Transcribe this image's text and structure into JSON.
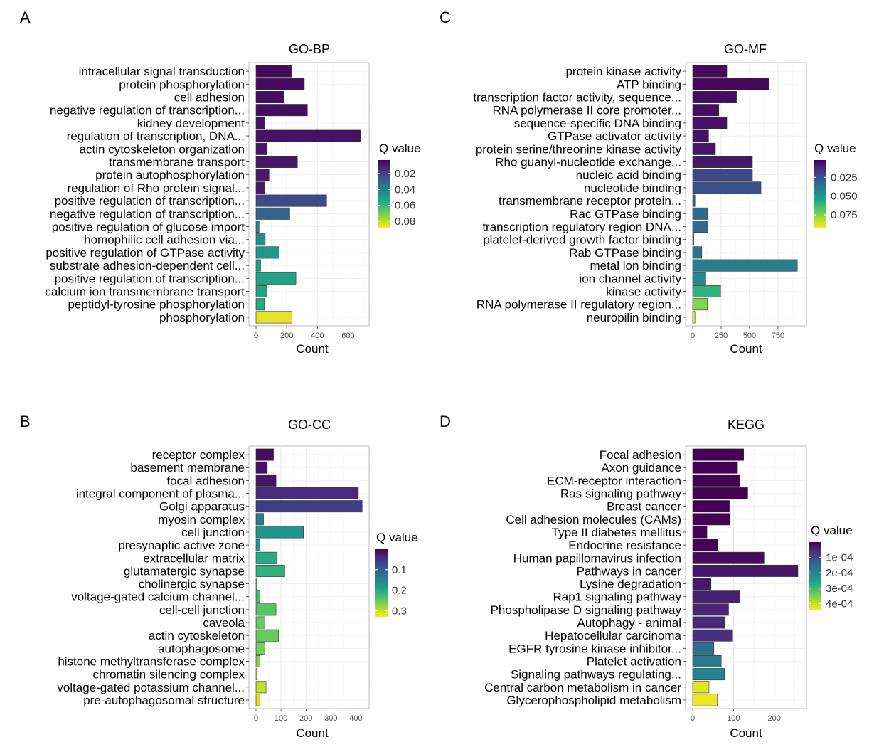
{
  "colorbar_colors": [
    "#440154",
    "#482878",
    "#3e4989",
    "#31688e",
    "#26828e",
    "#1f9e89",
    "#35b779",
    "#6ece58",
    "#b5de2b",
    "#fde725"
  ],
  "chart_data": [
    {
      "type": "bar",
      "panel_label": "A",
      "title": "GO-BP",
      "xlabel": "Count",
      "legend_title": "Q value",
      "legend_placement": "right",
      "xlim": [
        0,
        700
      ],
      "xticks": [
        0,
        200,
        400,
        600
      ],
      "qlim": [
        0.003,
        0.088
      ],
      "legend_ticks": [
        0.02,
        0.04,
        0.06,
        0.08
      ],
      "legend_tick_labels": [
        "0.02",
        "0.04",
        "0.06",
        "0.08"
      ],
      "categories": [
        "intracellular signal transduction",
        "protein phosphorylation",
        "cell adhesion",
        "negative regulation of transcription...",
        "kidney development",
        "regulation of transcription, DNA...",
        "actin cytoskeleton organization",
        "transmembrane transport",
        "protein autophosphorylation",
        "regulation of Rho protein signal...",
        "positive regulation of transcription...",
        "negative regulation of transcription...",
        "positive regulation of glucose import",
        "homophilic cell adhesion via...",
        "positive regulation of GTPase activity",
        "substrate adhesion-dependent cell...",
        "positive regulation of transcription...",
        "calcium ion transmembrane transport",
        "peptidyl-tyrosine phosphorylation",
        "phosphorylation"
      ],
      "values": [
        230,
        315,
        180,
        335,
        55,
        680,
        70,
        270,
        85,
        55,
        460,
        220,
        20,
        60,
        150,
        30,
        260,
        70,
        55,
        235
      ],
      "qvalues": [
        0.005,
        0.006,
        0.006,
        0.006,
        0.007,
        0.007,
        0.008,
        0.008,
        0.009,
        0.009,
        0.022,
        0.03,
        0.042,
        0.045,
        0.048,
        0.05,
        0.052,
        0.053,
        0.054,
        0.085
      ]
    },
    {
      "type": "bar",
      "panel_label": "B",
      "title": "GO-CC",
      "xlabel": "Count",
      "legend_title": "Q value",
      "legend_placement": "right",
      "xlim": [
        0,
        430
      ],
      "xticks": [
        0,
        100,
        200,
        300,
        400
      ],
      "qlim": [
        0.0,
        0.33
      ],
      "legend_ticks": [
        0.1,
        0.2,
        0.3
      ],
      "legend_tick_labels": [
        "0.1",
        "0.2",
        "0.3"
      ],
      "categories": [
        "receptor complex",
        "basement membrane",
        "focal adhesion",
        "integral component of plasma...",
        "Golgi apparatus",
        "myosin complex",
        "cell junction",
        "presynaptic active zone",
        "extracellular matrix",
        "glutamatergic synapse",
        "cholinergic synapse",
        "voltage-gated calcium channel...",
        "cell-cell junction",
        "caveola",
        "actin cytoskeleton",
        "autophagosome",
        "histone methyltransferase complex",
        "chromatin silencing complex",
        "voltage-gated potassium channel...",
        "pre-autophagosomal structure"
      ],
      "values": [
        70,
        45,
        80,
        410,
        425,
        30,
        190,
        15,
        85,
        115,
        5,
        15,
        80,
        35,
        90,
        35,
        15,
        5,
        40,
        15
      ],
      "qvalues": [
        0.01,
        0.015,
        0.02,
        0.04,
        0.06,
        0.14,
        0.17,
        0.18,
        0.2,
        0.21,
        0.22,
        0.23,
        0.24,
        0.25,
        0.25,
        0.26,
        0.27,
        0.28,
        0.3,
        0.31
      ]
    },
    {
      "type": "bar",
      "panel_label": "C",
      "title": "GO-MF",
      "xlabel": "Count",
      "legend_title": "Q value",
      "legend_placement": "right",
      "xlim": [
        0,
        950
      ],
      "xticks": [
        0,
        250,
        500,
        750
      ],
      "qlim": [
        0.002,
        0.092
      ],
      "legend_ticks": [
        0.025,
        0.05,
        0.075
      ],
      "legend_tick_labels": [
        "0.025",
        "0.050",
        "0.075"
      ],
      "categories": [
        "protein kinase activity",
        "ATP binding",
        "transcription factor activity, sequence...",
        "RNA polymerase II core promoter...",
        "sequence-specific DNA binding",
        "GTPase activator activity",
        "protein serine/threonine kinase activity",
        "Rho guanyl-nucleotide exchange...",
        "nucleic acid binding",
        "nucleotide binding",
        "transmembrane receptor protein...",
        "Rac GTPase binding",
        "transcription regulatory region DNA...",
        "platelet-derived growth factor binding",
        "Rab GTPase binding",
        "metal ion binding",
        "ion channel activity",
        "kinase activity",
        "RNA polymerase II regulatory region...",
        "neuropilin binding"
      ],
      "values": [
        300,
        670,
        385,
        230,
        300,
        140,
        200,
        525,
        525,
        600,
        20,
        130,
        135,
        10,
        80,
        920,
        115,
        245,
        130,
        20
      ],
      "qvalues": [
        0.004,
        0.004,
        0.005,
        0.005,
        0.006,
        0.006,
        0.007,
        0.008,
        0.022,
        0.024,
        0.03,
        0.032,
        0.033,
        0.034,
        0.036,
        0.04,
        0.045,
        0.06,
        0.075,
        0.09
      ]
    },
    {
      "type": "bar",
      "panel_label": "D",
      "title": "KEGG",
      "xlabel": "Count",
      "legend_title": "Q value",
      "legend_placement": "right",
      "xlim": [
        0,
        265
      ],
      "xticks": [
        0,
        100,
        200
      ],
      "qlim": [
        0.0,
        0.00044
      ],
      "legend_ticks": [
        0.0001,
        0.0002,
        0.0003,
        0.0004
      ],
      "legend_tick_labels": [
        "1e-04",
        "2e-04",
        "3e-04",
        "4e-04"
      ],
      "categories": [
        "Focal adhesion",
        "Axon guidance",
        "ECM-receptor interaction",
        "Ras signaling pathway",
        "Breast cancer",
        "Cell adhesion molecules (CAMs)",
        "Type II diabetes mellitus",
        "Endocrine resistance",
        "Human papillomavirus infection",
        "Pathways in cancer",
        "Lysine degradation",
        "Rap1 signaling pathway",
        "Phospholipase D signaling pathway",
        "Autophagy - animal",
        "Hepatocellular carcinoma",
        "EGFR tyrosine kinase inhibitor...",
        "Platelet activation",
        "Signaling pathways regulating...",
        "Central carbon metabolism in cancer",
        "Glycerophospholipid metabolism"
      ],
      "values": [
        125,
        110,
        115,
        135,
        90,
        92,
        35,
        62,
        175,
        258,
        45,
        115,
        88,
        78,
        98,
        52,
        70,
        78,
        40,
        60
      ],
      "qvalues": [
        1e-07,
        1e-07,
        1e-07,
        2e-07,
        3e-07,
        3e-07,
        5e-07,
        1e-06,
        1.2e-05,
        2.8e-05,
        3e-05,
        4e-05,
        4.5e-05,
        5e-05,
        6e-05,
        0.00016,
        0.00018,
        0.0002,
        0.00042,
        0.00043
      ]
    }
  ]
}
